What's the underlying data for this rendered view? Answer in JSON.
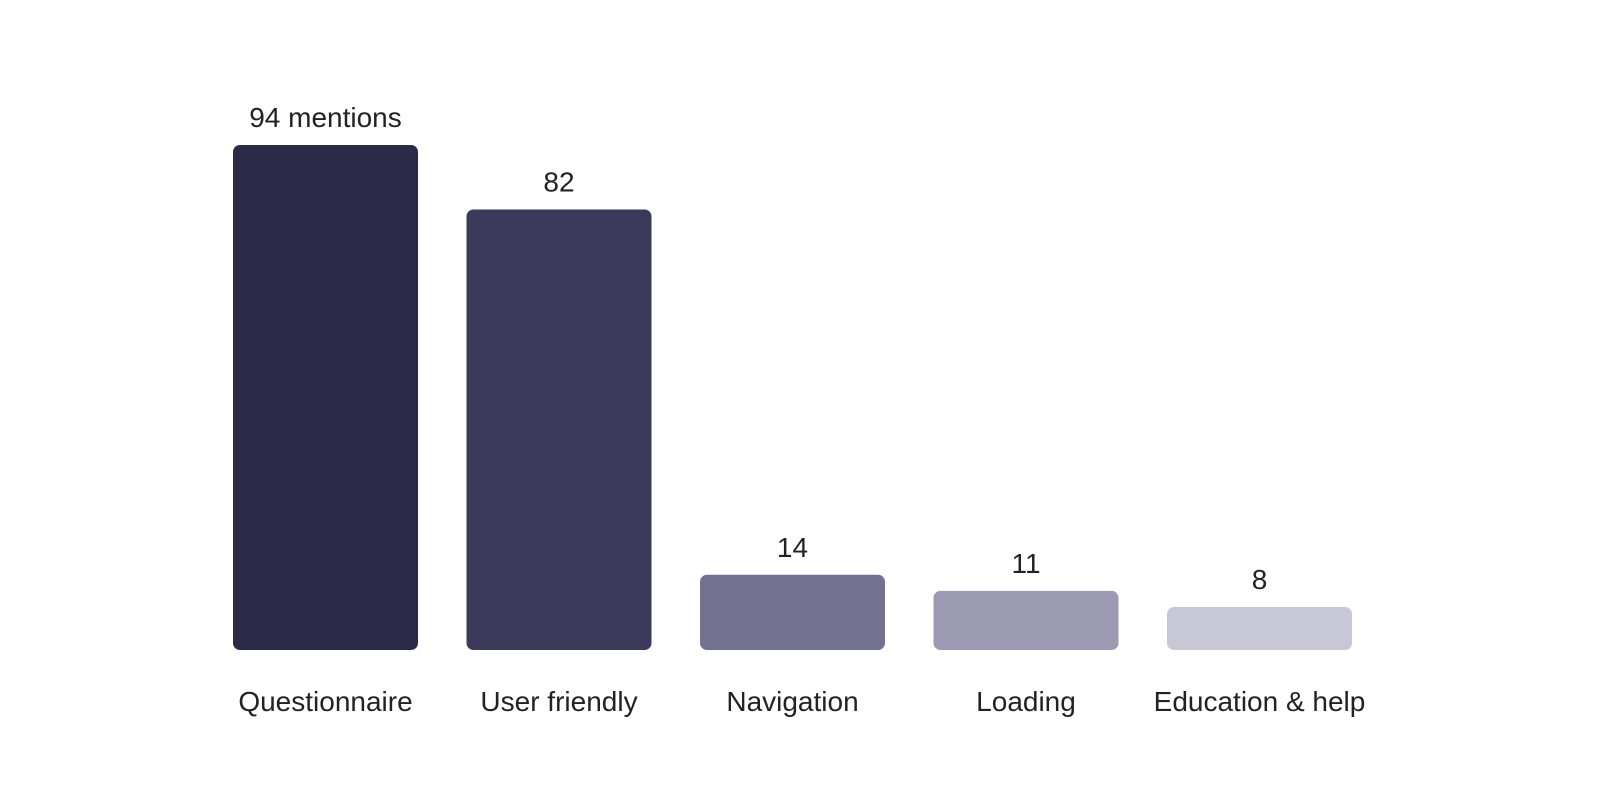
{
  "chart_data": {
    "type": "bar",
    "title": "",
    "xlabel": "",
    "ylabel": "",
    "categories": [
      "Questionnaire",
      "User friendly",
      "Navigation",
      "Loading",
      "Education & help"
    ],
    "values": [
      94,
      82,
      14,
      11,
      8
    ],
    "value_labels": [
      "94 mentions",
      "82",
      "14",
      "11",
      "8"
    ],
    "bar_colors": [
      "#2b2a48",
      "#3b3a5b",
      "#72718f",
      "#9b9ab2",
      "#c8c7d5"
    ],
    "ylim": [
      0,
      94
    ],
    "grid": false,
    "legend": "none"
  }
}
